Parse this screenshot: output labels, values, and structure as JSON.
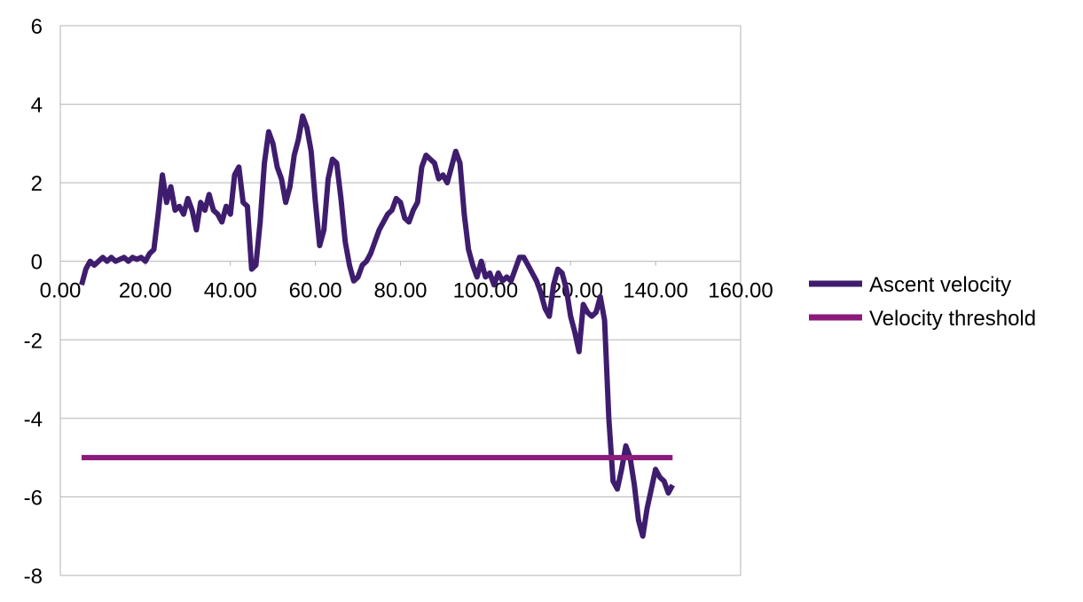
{
  "chart_data": {
    "type": "line",
    "title": "",
    "xlabel": "",
    "ylabel": "",
    "xlim": [
      0,
      160
    ],
    "ylim": [
      -8,
      6
    ],
    "xticks": [
      0,
      20,
      40,
      60,
      80,
      100,
      120,
      140,
      160
    ],
    "xtick_labels": [
      "0.00",
      "20.00",
      "40.00",
      "60.00",
      "80.00",
      "100.00",
      "120.00",
      "140.00",
      "160.00"
    ],
    "yticks": [
      6,
      4,
      2,
      0,
      -2,
      -4,
      -6,
      -8
    ],
    "ytick_labels": [
      "6",
      "4",
      "2",
      "0",
      "-2",
      "-4",
      "-6",
      "-8"
    ],
    "grid": "horizontal",
    "legend": "right",
    "series": [
      {
        "name": "Ascent velocity",
        "color": "#3f1d6e",
        "points": [
          [
            5,
            -0.6
          ],
          [
            6,
            -0.2
          ],
          [
            7,
            0.0
          ],
          [
            8,
            -0.1
          ],
          [
            9,
            0.0
          ],
          [
            10,
            0.1
          ],
          [
            11,
            0.0
          ],
          [
            12,
            0.1
          ],
          [
            13,
            0.0
          ],
          [
            14,
            0.05
          ],
          [
            15,
            0.1
          ],
          [
            16,
            0.0
          ],
          [
            17,
            0.1
          ],
          [
            18,
            0.05
          ],
          [
            19,
            0.1
          ],
          [
            20,
            0.0
          ],
          [
            21,
            0.2
          ],
          [
            22,
            0.3
          ],
          [
            23,
            1.2
          ],
          [
            24,
            2.2
          ],
          [
            25,
            1.5
          ],
          [
            26,
            1.9
          ],
          [
            27,
            1.3
          ],
          [
            28,
            1.4
          ],
          [
            29,
            1.2
          ],
          [
            30,
            1.6
          ],
          [
            31,
            1.3
          ],
          [
            32,
            0.8
          ],
          [
            33,
            1.5
          ],
          [
            34,
            1.3
          ],
          [
            35,
            1.7
          ],
          [
            36,
            1.3
          ],
          [
            37,
            1.2
          ],
          [
            38,
            1.0
          ],
          [
            39,
            1.4
          ],
          [
            40,
            1.2
          ],
          [
            41,
            2.2
          ],
          [
            42,
            2.4
          ],
          [
            43,
            1.5
          ],
          [
            44,
            1.4
          ],
          [
            45,
            -0.2
          ],
          [
            46,
            -0.1
          ],
          [
            47,
            1.0
          ],
          [
            48,
            2.5
          ],
          [
            49,
            3.3
          ],
          [
            50,
            3.0
          ],
          [
            51,
            2.4
          ],
          [
            52,
            2.1
          ],
          [
            53,
            1.5
          ],
          [
            54,
            1.9
          ],
          [
            55,
            2.7
          ],
          [
            56,
            3.1
          ],
          [
            57,
            3.7
          ],
          [
            58,
            3.4
          ],
          [
            59,
            2.8
          ],
          [
            60,
            1.5
          ],
          [
            61,
            0.4
          ],
          [
            62,
            0.8
          ],
          [
            63,
            2.1
          ],
          [
            64,
            2.6
          ],
          [
            65,
            2.5
          ],
          [
            66,
            1.6
          ],
          [
            67,
            0.5
          ],
          [
            68,
            -0.1
          ],
          [
            69,
            -0.5
          ],
          [
            70,
            -0.4
          ],
          [
            71,
            -0.1
          ],
          [
            72,
            0.0
          ],
          [
            73,
            0.2
          ],
          [
            74,
            0.5
          ],
          [
            75,
            0.8
          ],
          [
            76,
            1.0
          ],
          [
            77,
            1.2
          ],
          [
            78,
            1.3
          ],
          [
            79,
            1.6
          ],
          [
            80,
            1.5
          ],
          [
            81,
            1.1
          ],
          [
            82,
            1.0
          ],
          [
            83,
            1.3
          ],
          [
            84,
            1.5
          ],
          [
            85,
            2.4
          ],
          [
            86,
            2.7
          ],
          [
            87,
            2.6
          ],
          [
            88,
            2.5
          ],
          [
            89,
            2.1
          ],
          [
            90,
            2.2
          ],
          [
            91,
            2.0
          ],
          [
            92,
            2.4
          ],
          [
            93,
            2.8
          ],
          [
            94,
            2.5
          ],
          [
            95,
            1.2
          ],
          [
            96,
            0.3
          ],
          [
            97,
            -0.1
          ],
          [
            98,
            -0.4
          ],
          [
            99,
            0.0
          ],
          [
            100,
            -0.4
          ],
          [
            101,
            -0.3
          ],
          [
            102,
            -0.6
          ],
          [
            103,
            -0.3
          ],
          [
            104,
            -0.5
          ],
          [
            105,
            -0.4
          ],
          [
            106,
            -0.5
          ],
          [
            107,
            -0.2
          ],
          [
            108,
            0.1
          ],
          [
            109,
            0.1
          ],
          [
            110,
            -0.1
          ],
          [
            111,
            -0.3
          ],
          [
            112,
            -0.5
          ],
          [
            113,
            -0.8
          ],
          [
            114,
            -1.2
          ],
          [
            115,
            -1.4
          ],
          [
            116,
            -0.6
          ],
          [
            117,
            -0.2
          ],
          [
            118,
            -0.3
          ],
          [
            119,
            -0.7
          ],
          [
            120,
            -1.4
          ],
          [
            121,
            -1.8
          ],
          [
            122,
            -2.3
          ],
          [
            123,
            -1.1
          ],
          [
            124,
            -1.3
          ],
          [
            125,
            -1.4
          ],
          [
            126,
            -1.3
          ],
          [
            127,
            -0.9
          ],
          [
            128,
            -1.5
          ],
          [
            129,
            -4.0
          ],
          [
            130,
            -5.6
          ],
          [
            131,
            -5.8
          ],
          [
            132,
            -5.3
          ],
          [
            133,
            -4.7
          ],
          [
            134,
            -5.0
          ],
          [
            135,
            -5.7
          ],
          [
            136,
            -6.6
          ],
          [
            137,
            -7.0
          ],
          [
            138,
            -6.3
          ],
          [
            139,
            -5.8
          ],
          [
            140,
            -5.3
          ],
          [
            141,
            -5.5
          ],
          [
            142,
            -5.6
          ],
          [
            143,
            -5.9
          ],
          [
            144,
            -5.7
          ]
        ]
      },
      {
        "name": "Velocity threshold",
        "color": "#8b1a7a",
        "points": [
          [
            5,
            -5
          ],
          [
            144,
            -5
          ]
        ]
      }
    ]
  }
}
